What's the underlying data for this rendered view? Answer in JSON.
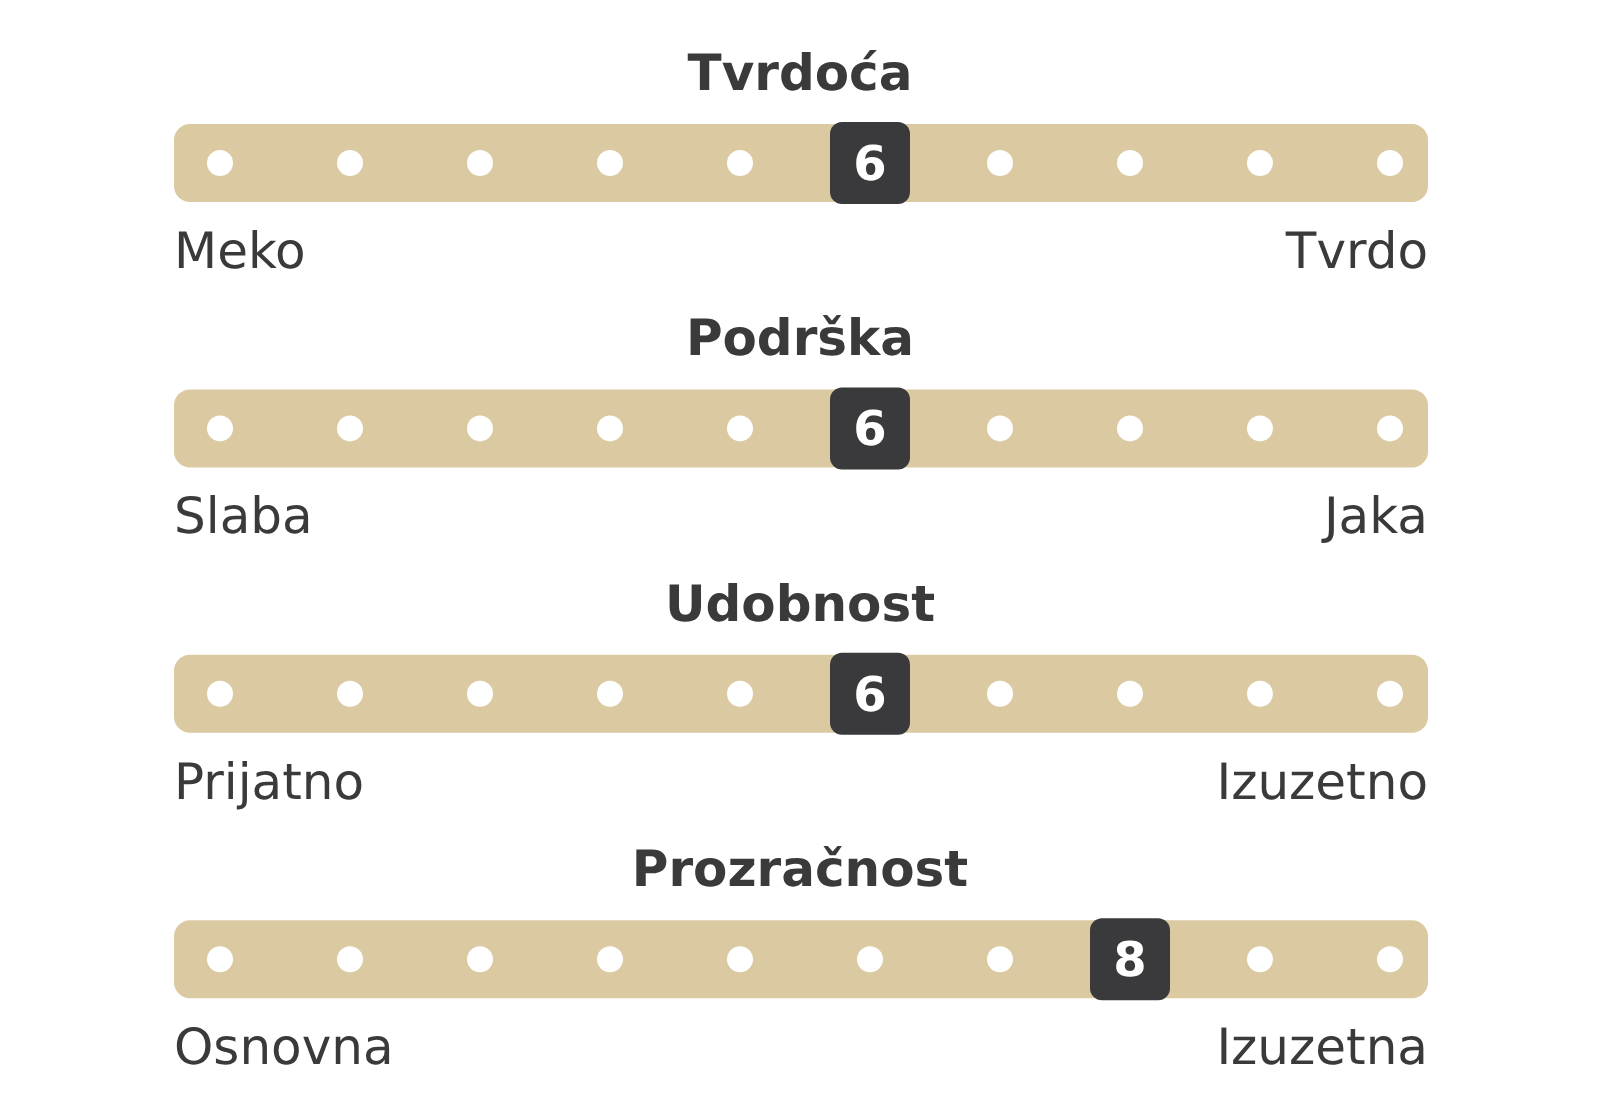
{
  "chart_data": [
    {
      "type": "other",
      "title": "Tvrdoća",
      "categories": [
        null,
        null,
        null,
        null,
        null,
        null,
        null,
        null,
        null,
        null
      ],
      "values": [
        null,
        null,
        null,
        null,
        null,
        6,
        null,
        null,
        null,
        null
      ],
      "color": "#3a3a3c",
      "data_labels": true,
      "annotations": [
        "Meko",
        "Tvrdo"
      ]
    },
    {
      "type": "other",
      "title": "Podrška",
      "categories": [
        null,
        null,
        null,
        null,
        null,
        null,
        null,
        null,
        null,
        null
      ],
      "values": [
        null,
        null,
        null,
        null,
        null,
        6,
        null,
        null,
        null,
        null
      ],
      "color": "#3a3a3c",
      "data_labels": true,
      "annotations": [
        "Slaba",
        "Jaka"
      ]
    },
    {
      "type": "other",
      "title": "Udobnost",
      "categories": [
        null,
        null,
        null,
        null,
        null,
        null,
        null,
        null,
        null,
        null
      ],
      "values": [
        null,
        null,
        null,
        null,
        null,
        6,
        null,
        null,
        null,
        null
      ],
      "color": "#3a3a3c",
      "data_labels": true,
      "annotations": [
        "Prijatno",
        "Izuzetno"
      ]
    },
    {
      "type": "other",
      "title": "Prozračnost",
      "categories": [
        null,
        null,
        null,
        null,
        null,
        null,
        null,
        null,
        null,
        null
      ],
      "values": [
        null,
        null,
        null,
        null,
        null,
        null,
        null,
        8,
        null,
        null
      ],
      "color": "#3a3a3c",
      "data_labels": true,
      "annotations": [
        "Osnovna",
        "Izuzetna"
      ]
    }
  ]
}
